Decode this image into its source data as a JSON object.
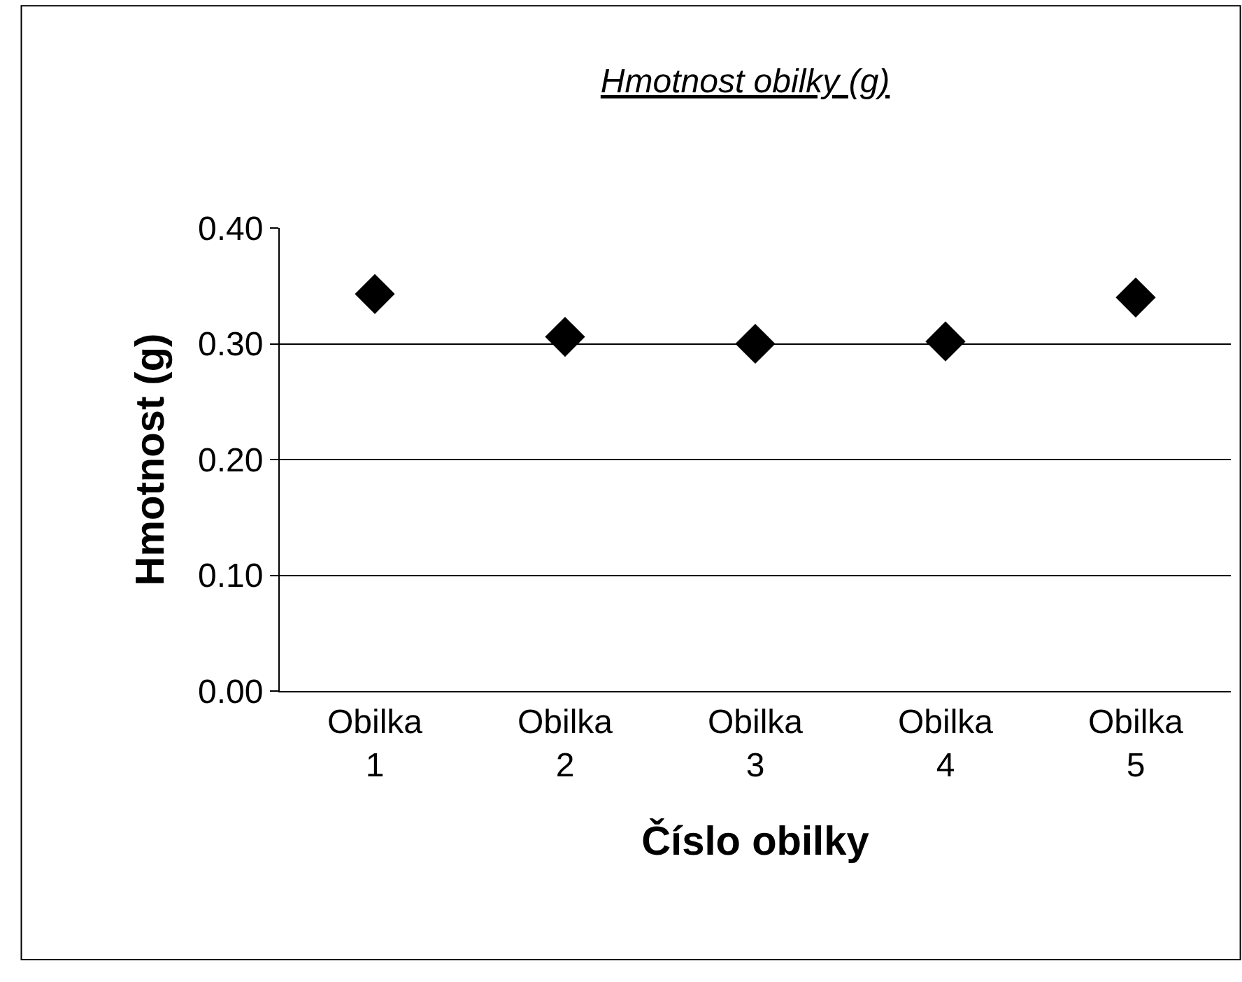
{
  "chart_data": {
    "type": "scatter",
    "title": "Hmotnost obilky (g)",
    "xlabel": "Číslo obilky",
    "ylabel": "Hmotnost (g)",
    "categories": [
      "Obilka 1",
      "Obilka 2",
      "Obilka 3",
      "Obilka 4",
      "Obilka 5"
    ],
    "series": [
      {
        "color": "#000000",
        "values": [
          0.343,
          0.306,
          0.3,
          0.302,
          0.34
        ]
      }
    ],
    "ylim": [
      0,
      0.4
    ],
    "yticks": [
      {
        "value": 0,
        "label": "0.00"
      },
      {
        "value": 0.1,
        "label": "0.10"
      },
      {
        "value": 0.2,
        "label": "0.20"
      },
      {
        "value": 0.3,
        "label": "0.30"
      },
      {
        "value": 0.4,
        "label": "0.40"
      }
    ],
    "grid": "y",
    "marker": "diamond",
    "legend": false
  }
}
